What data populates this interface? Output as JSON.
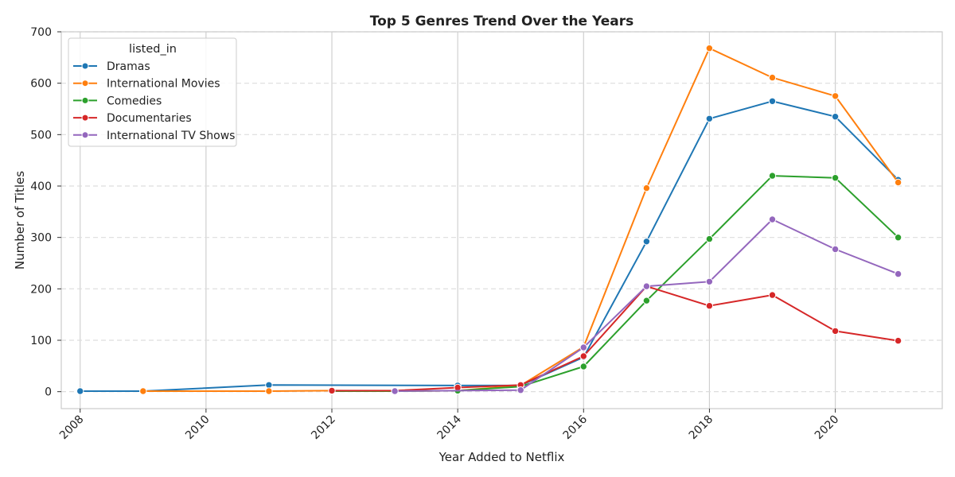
{
  "chart_data": {
    "type": "line",
    "title": "Top 5 Genres Trend Over the Years",
    "xlabel": "Year Added to Netflix",
    "ylabel": "Number of Titles",
    "xlim": [
      2007.7,
      2021.7
    ],
    "ylim": [
      -33,
      700
    ],
    "x_ticks": [
      2008,
      2010,
      2012,
      2014,
      2016,
      2018,
      2020
    ],
    "y_ticks": [
      0,
      100,
      200,
      300,
      400,
      500,
      600,
      700
    ],
    "grid": {
      "x": "solid",
      "y": "dashed"
    },
    "legend": {
      "title": "listed_in",
      "placement": "top-left"
    },
    "series": [
      {
        "name": "Dramas",
        "color": "#1f77b4",
        "points": [
          [
            2008,
            1
          ],
          [
            2009,
            1
          ],
          [
            2011,
            13
          ],
          [
            2014,
            12
          ],
          [
            2015,
            12
          ],
          [
            2016,
            67
          ],
          [
            2017,
            292
          ],
          [
            2018,
            531
          ],
          [
            2019,
            565
          ],
          [
            2020,
            535
          ],
          [
            2021,
            412
          ]
        ]
      },
      {
        "name": "International Movies",
        "color": "#ff7f0e",
        "points": [
          [
            2009,
            1
          ],
          [
            2011,
            1
          ],
          [
            2012,
            2
          ],
          [
            2013,
            1
          ],
          [
            2014,
            2
          ],
          [
            2015,
            12
          ],
          [
            2016,
            87
          ],
          [
            2017,
            396
          ],
          [
            2018,
            668
          ],
          [
            2019,
            611
          ],
          [
            2020,
            575
          ],
          [
            2021,
            407
          ]
        ]
      },
      {
        "name": "Comedies",
        "color": "#2ca02c",
        "points": [
          [
            2012,
            1
          ],
          [
            2013,
            1
          ],
          [
            2014,
            2
          ],
          [
            2015,
            10
          ],
          [
            2016,
            49
          ],
          [
            2017,
            177
          ],
          [
            2018,
            297
          ],
          [
            2019,
            420
          ],
          [
            2020,
            416
          ],
          [
            2021,
            300
          ]
        ]
      },
      {
        "name": "Documentaries",
        "color": "#d62728",
        "points": [
          [
            2012,
            2
          ],
          [
            2013,
            2
          ],
          [
            2014,
            8
          ],
          [
            2015,
            13
          ],
          [
            2016,
            69
          ],
          [
            2017,
            205
          ],
          [
            2018,
            167
          ],
          [
            2019,
            188
          ],
          [
            2020,
            118
          ],
          [
            2021,
            99
          ]
        ]
      },
      {
        "name": "International TV Shows",
        "color": "#9467bd",
        "points": [
          [
            2013,
            1
          ],
          [
            2015,
            3
          ],
          [
            2016,
            86
          ],
          [
            2017,
            205
          ],
          [
            2018,
            214
          ],
          [
            2019,
            335
          ],
          [
            2020,
            277
          ],
          [
            2021,
            229
          ]
        ]
      }
    ]
  }
}
